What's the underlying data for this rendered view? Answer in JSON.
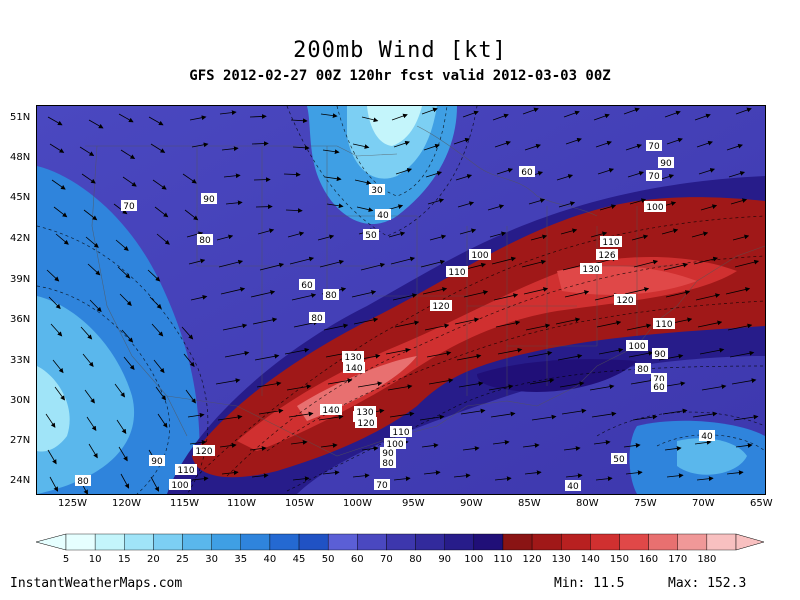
{
  "title": "200mb Wind [kt]",
  "subtitle": "GFS 2012-02-27 00Z 120hr fcst valid 2012-03-03 00Z",
  "lat_labels": [
    "51N",
    "48N",
    "45N",
    "42N",
    "39N",
    "36N",
    "33N",
    "30N",
    "27N",
    "24N"
  ],
  "lon_labels": [
    "125W",
    "120W",
    "115W",
    "110W",
    "105W",
    "100W",
    "95W",
    "90W",
    "85W",
    "80W",
    "75W",
    "70W",
    "65W"
  ],
  "colorbar": {
    "ticks": [
      "5",
      "10",
      "15",
      "20",
      "25",
      "30",
      "35",
      "40",
      "45",
      "50",
      "60",
      "70",
      "80",
      "90",
      "100",
      "110",
      "120",
      "130",
      "140",
      "150",
      "160",
      "170",
      "180"
    ],
    "colors": [
      "#e6ffff",
      "#c4f5fb",
      "#a0e4f8",
      "#7ccff3",
      "#5ab7ec",
      "#3f9fe4",
      "#2f84dc",
      "#2469d2",
      "#2052c4",
      "#5b5fd6",
      "#4a48c0",
      "#3d37ad",
      "#322a9c",
      "#271c8a",
      "#200f78",
      "#8a1414",
      "#a01818",
      "#b82020",
      "#d03030",
      "#e04848",
      "#e87070",
      "#f09898",
      "#f8c0c0"
    ]
  },
  "contour_labels": [
    {
      "text": "70"
    },
    {
      "text": "90"
    },
    {
      "text": "80"
    },
    {
      "text": "30"
    },
    {
      "text": "40"
    },
    {
      "text": "50"
    },
    {
      "text": "60"
    },
    {
      "text": "70"
    },
    {
      "text": "90"
    },
    {
      "text": "70"
    },
    {
      "text": "60"
    },
    {
      "text": "80"
    },
    {
      "text": "80"
    },
    {
      "text": "100"
    },
    {
      "text": "100"
    },
    {
      "text": "110"
    },
    {
      "text": "110"
    },
    {
      "text": "120"
    },
    {
      "text": "120"
    },
    {
      "text": "130"
    },
    {
      "text": "120"
    },
    {
      "text": "110"
    },
    {
      "text": "100"
    },
    {
      "text": "90"
    },
    {
      "text": "80"
    },
    {
      "text": "70"
    },
    {
      "text": "60"
    },
    {
      "text": "130"
    },
    {
      "text": "140"
    },
    {
      "text": "140"
    },
    {
      "text": "130"
    },
    {
      "text": "120"
    },
    {
      "text": "110"
    },
    {
      "text": "100"
    },
    {
      "text": "90"
    },
    {
      "text": "80"
    },
    {
      "text": "120"
    },
    {
      "text": "90"
    },
    {
      "text": "110"
    },
    {
      "text": "100"
    },
    {
      "text": "80"
    },
    {
      "text": "70"
    },
    {
      "text": "40"
    },
    {
      "text": "50"
    },
    {
      "text": "40"
    },
    {
      "text": "126"
    }
  ],
  "footer": {
    "site": "InstantWeatherMaps.com",
    "min_label": "Min:  11.5",
    "max_label": "Max: 152.3"
  }
}
